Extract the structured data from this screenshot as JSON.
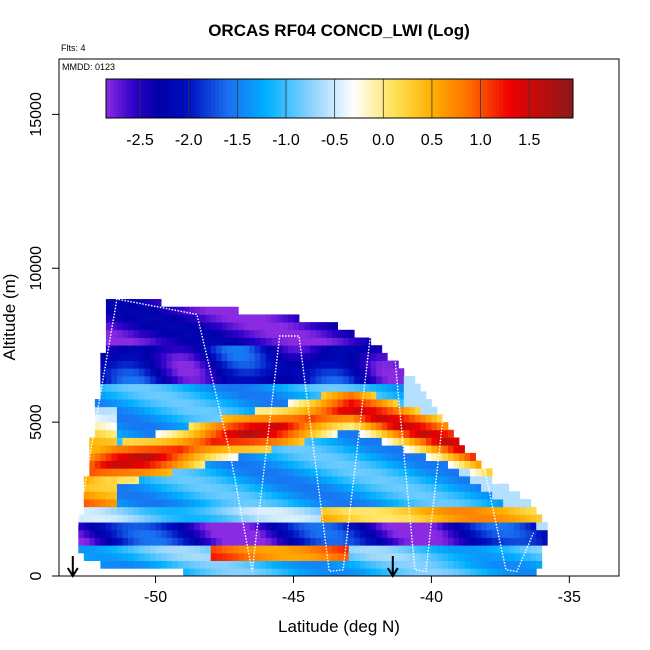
{
  "chart_data": {
    "type": "heatmap",
    "title": "ORCAS RF04 CONCD_LWI (Log)",
    "flights_label": "Flts: 4",
    "date_label": "MMDD: 0123",
    "xlabel": "Latitude (deg N)",
    "ylabel": "Altitude (m)",
    "xlim": [
      -53.5,
      -33.2
    ],
    "ylim": [
      0,
      16800
    ],
    "x_ticks": [
      -50,
      -45,
      -40,
      -35
    ],
    "y_ticks": [
      0,
      5000,
      10000,
      15000
    ],
    "colorbar": {
      "range": [
        -2.85,
        1.95
      ],
      "ticks": [
        -2.5,
        -2.0,
        -1.5,
        -1.0,
        -0.5,
        0.0,
        0.5,
        1.0,
        1.5
      ],
      "tick_labels": [
        "-2.5",
        "-2.0",
        "-1.5",
        "-1.0",
        "-0.5",
        "0.0",
        "0.5",
        "1.0",
        "1.5"
      ],
      "stops": [
        {
          "v": -2.85,
          "color": "#8a2be2"
        },
        {
          "v": -2.55,
          "color": "#2b00c8"
        },
        {
          "v": -2.3,
          "color": "#0000a8"
        },
        {
          "v": -2.0,
          "color": "#0010c0"
        },
        {
          "v": -1.6,
          "color": "#1a6ef0"
        },
        {
          "v": -1.2,
          "color": "#00b0ff"
        },
        {
          "v": -0.7,
          "color": "#9ad6ff"
        },
        {
          "v": -0.3,
          "color": "#ffffff"
        },
        {
          "v": 0.1,
          "color": "#ffe35a"
        },
        {
          "v": 0.5,
          "color": "#ffb000"
        },
        {
          "v": 0.9,
          "color": "#ff6a00"
        },
        {
          "v": 1.3,
          "color": "#ee0000"
        },
        {
          "v": 1.95,
          "color": "#8b1a1a"
        }
      ]
    },
    "field": {
      "lat_range": [
        -53.0,
        -35.9
      ],
      "alt_max": [
        [
          -53.0,
          0
        ],
        [
          -51.9,
          7000
        ],
        [
          -51.7,
          9000
        ],
        [
          -51.4,
          8800
        ],
        [
          -50.5,
          8800
        ],
        [
          -48.0,
          8600
        ],
        [
          -45.0,
          8300
        ],
        [
          -43.3,
          8000
        ],
        [
          -42.0,
          7400
        ],
        [
          -40.5,
          6100
        ],
        [
          -39.0,
          4200
        ],
        [
          -37.5,
          3000
        ],
        [
          -36.5,
          2300
        ],
        [
          -35.9,
          1600
        ]
      ],
      "alt_min": [
        [
          -53.0,
          900
        ],
        [
          -52.0,
          500
        ],
        [
          -50.0,
          300
        ],
        [
          -48.0,
          200
        ],
        [
          -45.0,
          100
        ],
        [
          -42.0,
          50
        ],
        [
          -36.2,
          50
        ],
        [
          -35.9,
          1100
        ]
      ],
      "alt_top_bound": 9000
    },
    "arrows_lat": [
      -53.0,
      -41.4
    ],
    "flight_track": {
      "lat": [
        -53.0,
        -51.4,
        -48.5,
        -47.3,
        -46.5,
        -45.5,
        -44.8,
        -43.7,
        -43.2,
        -42.2,
        -41.4,
        -40.6,
        -40.2,
        -39.5,
        -38.6,
        -37.3,
        -36.9,
        -36.3
      ],
      "alt": [
        700,
        9000,
        8500,
        4000,
        150,
        7800,
        7800,
        150,
        200,
        7900,
        7800,
        200,
        150,
        5800,
        5700,
        200,
        150,
        1400
      ]
    }
  }
}
